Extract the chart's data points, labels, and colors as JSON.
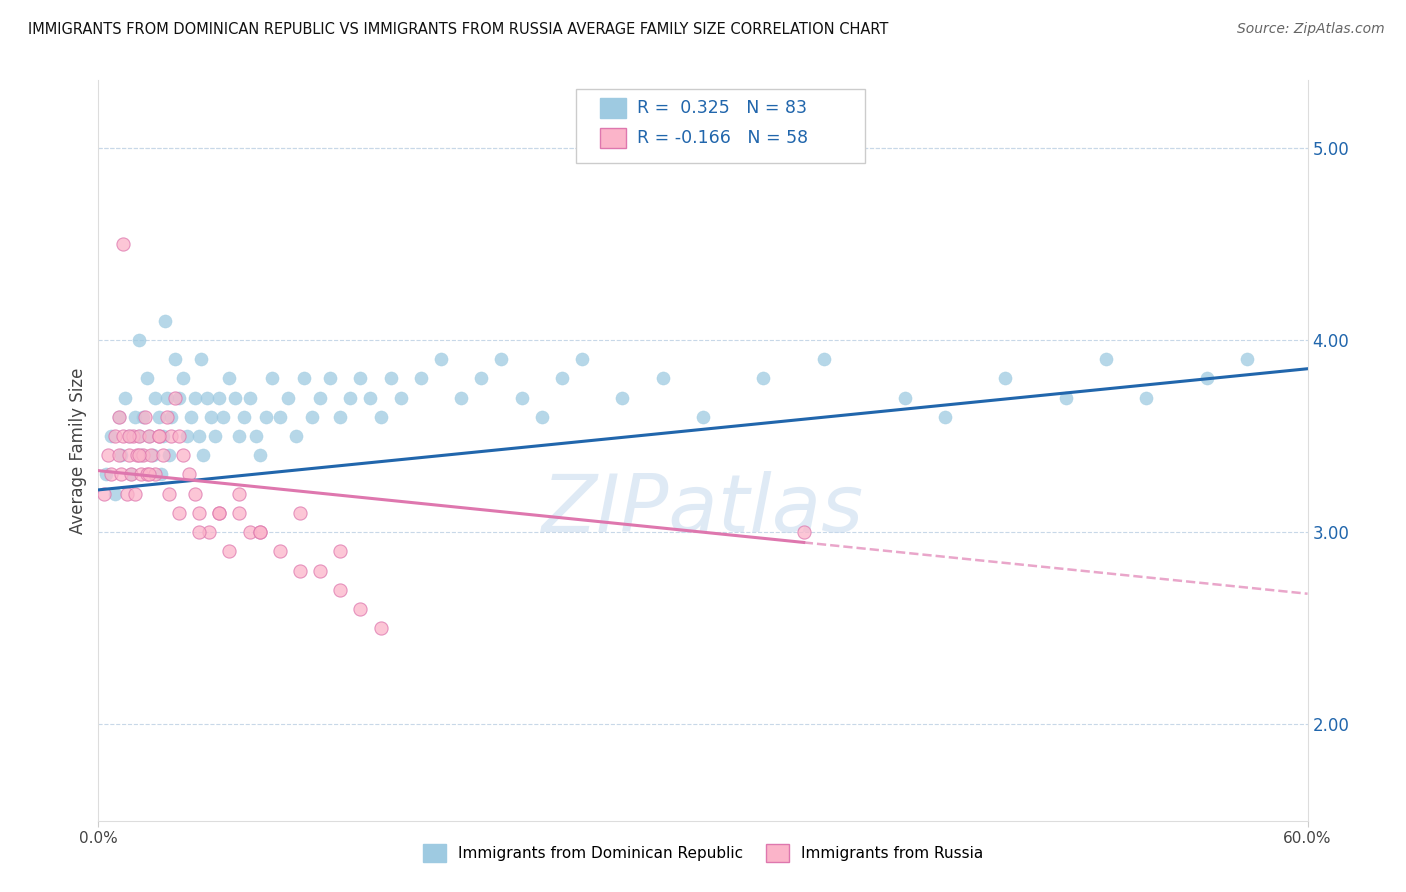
{
  "title": "IMMIGRANTS FROM DOMINICAN REPUBLIC VS IMMIGRANTS FROM RUSSIA AVERAGE FAMILY SIZE CORRELATION CHART",
  "source": "Source: ZipAtlas.com",
  "ylabel": "Average Family Size",
  "right_yticks": [
    2.0,
    3.0,
    4.0,
    5.0
  ],
  "blue_R": 0.325,
  "blue_N": 83,
  "pink_R": -0.166,
  "pink_N": 58,
  "legend1": "Immigrants from Dominican Republic",
  "legend2": "Immigrants from Russia",
  "watermark": "ZIPatlas",
  "blue_color": "#9ecae1",
  "blue_edge_color": "#9ecae1",
  "blue_line_color": "#2166ac",
  "pink_color": "#fbb4c9",
  "pink_edge_color": "#de77ae",
  "pink_line_color": "#de77ae",
  "xmin": 0.0,
  "xmax": 60.0,
  "ymin": 1.5,
  "ymax": 5.35,
  "blue_line_x0": 0.0,
  "blue_line_y0": 3.22,
  "blue_line_x1": 60.0,
  "blue_line_y1": 3.85,
  "pink_line_x0": 0.0,
  "pink_line_y0": 3.32,
  "pink_line_x1": 60.0,
  "pink_line_y1": 2.68,
  "pink_solid_end_x": 35.0,
  "blue_scatter_x": [
    0.4,
    0.6,
    0.8,
    1.0,
    1.1,
    1.3,
    1.5,
    1.6,
    1.8,
    2.0,
    2.1,
    2.2,
    2.4,
    2.5,
    2.7,
    2.8,
    3.0,
    3.1,
    3.2,
    3.4,
    3.5,
    3.6,
    3.8,
    4.0,
    4.2,
    4.4,
    4.6,
    4.8,
    5.0,
    5.2,
    5.4,
    5.6,
    5.8,
    6.0,
    6.2,
    6.5,
    6.8,
    7.0,
    7.2,
    7.5,
    7.8,
    8.0,
    8.3,
    8.6,
    9.0,
    9.4,
    9.8,
    10.2,
    10.6,
    11.0,
    11.5,
    12.0,
    12.5,
    13.0,
    13.5,
    14.0,
    14.5,
    15.0,
    16.0,
    17.0,
    18.0,
    19.0,
    20.0,
    21.0,
    22.0,
    23.0,
    24.0,
    26.0,
    28.0,
    30.0,
    33.0,
    36.0,
    40.0,
    42.0,
    45.0,
    48.0,
    50.0,
    52.0,
    55.0,
    57.0,
    2.0,
    3.3,
    5.1
  ],
  "blue_scatter_y": [
    3.3,
    3.5,
    3.2,
    3.6,
    3.4,
    3.7,
    3.5,
    3.3,
    3.6,
    3.5,
    3.4,
    3.6,
    3.8,
    3.5,
    3.4,
    3.7,
    3.6,
    3.3,
    3.5,
    3.7,
    3.4,
    3.6,
    3.9,
    3.7,
    3.8,
    3.5,
    3.6,
    3.7,
    3.5,
    3.4,
    3.7,
    3.6,
    3.5,
    3.7,
    3.6,
    3.8,
    3.7,
    3.5,
    3.6,
    3.7,
    3.5,
    3.4,
    3.6,
    3.8,
    3.6,
    3.7,
    3.5,
    3.8,
    3.6,
    3.7,
    3.8,
    3.6,
    3.7,
    3.8,
    3.7,
    3.6,
    3.8,
    3.7,
    3.8,
    3.9,
    3.7,
    3.8,
    3.9,
    3.7,
    3.6,
    3.8,
    3.9,
    3.7,
    3.8,
    3.6,
    3.8,
    3.9,
    3.7,
    3.6,
    3.8,
    3.7,
    3.9,
    3.7,
    3.8,
    3.9,
    4.0,
    4.1,
    3.9
  ],
  "pink_scatter_x": [
    0.3,
    0.5,
    0.6,
    0.8,
    1.0,
    1.1,
    1.2,
    1.4,
    1.5,
    1.6,
    1.7,
    1.8,
    1.9,
    2.0,
    2.1,
    2.2,
    2.3,
    2.4,
    2.5,
    2.6,
    2.8,
    3.0,
    3.2,
    3.4,
    3.6,
    3.8,
    4.0,
    4.2,
    4.5,
    4.8,
    5.0,
    5.5,
    6.0,
    6.5,
    7.0,
    7.5,
    8.0,
    9.0,
    10.0,
    11.0,
    12.0,
    13.0,
    14.0,
    1.0,
    1.5,
    2.0,
    2.5,
    3.0,
    3.5,
    4.0,
    5.0,
    6.0,
    7.0,
    8.0,
    10.0,
    12.0,
    35.0,
    1.2
  ],
  "pink_scatter_y": [
    3.2,
    3.4,
    3.3,
    3.5,
    3.4,
    3.3,
    3.5,
    3.2,
    3.4,
    3.3,
    3.5,
    3.2,
    3.4,
    3.5,
    3.3,
    3.4,
    3.6,
    3.3,
    3.5,
    3.4,
    3.3,
    3.5,
    3.4,
    3.6,
    3.5,
    3.7,
    3.5,
    3.4,
    3.3,
    3.2,
    3.1,
    3.0,
    3.1,
    2.9,
    3.1,
    3.0,
    3.0,
    2.9,
    2.8,
    2.8,
    2.7,
    2.6,
    2.5,
    3.6,
    3.5,
    3.4,
    3.3,
    3.5,
    3.2,
    3.1,
    3.0,
    3.1,
    3.2,
    3.0,
    3.1,
    2.9,
    3.0,
    4.5
  ]
}
